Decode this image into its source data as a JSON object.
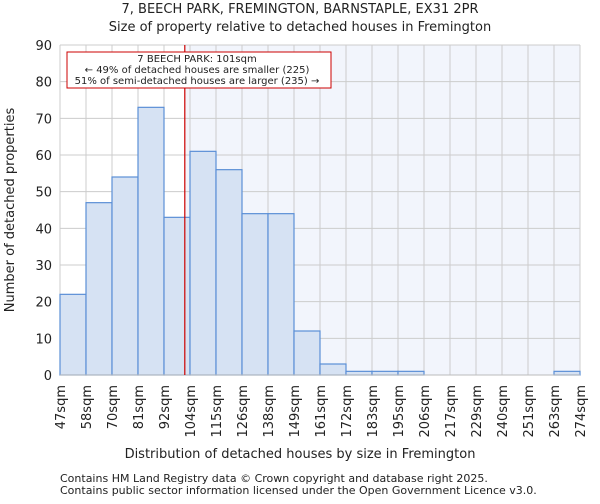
{
  "chart_data": {
    "type": "bar",
    "title": "7, BEECH PARK, FREMINGTON, BARNSTAPLE, EX31 2PR",
    "subtitle": "Size of property relative to detached houses in Fremington",
    "xlabel": "Distribution of detached houses by size in Fremington",
    "ylabel": "Number of detached properties",
    "tick_labels": [
      "47sqm",
      "58sqm",
      "70sqm",
      "81sqm",
      "92sqm",
      "104sqm",
      "115sqm",
      "126sqm",
      "138sqm",
      "149sqm",
      "161sqm",
      "172sqm",
      "183sqm",
      "195sqm",
      "206sqm",
      "217sqm",
      "229sqm",
      "240sqm",
      "251sqm",
      "263sqm",
      "274sqm"
    ],
    "values": [
      22,
      47,
      54,
      73,
      43,
      61,
      56,
      44,
      44,
      12,
      3,
      1,
      1,
      1,
      0,
      0,
      0,
      0,
      0,
      1
    ],
    "ylim": [
      0,
      90
    ],
    "yticks": [
      0,
      10,
      20,
      30,
      40,
      50,
      60,
      70,
      80,
      90
    ],
    "grid": true,
    "marker": {
      "value_bin_position": 4.8,
      "label": "7 BEECH PARK: 101sqm",
      "line1": "← 49% of detached houses are smaller (225)",
      "line2": "51% of semi-detached houses are larger (235) →",
      "color": "#cc0000"
    },
    "colors": {
      "bar_fill": "#d6e2f3",
      "bar_stroke": "#5b8fd6",
      "right_bg": "#f2f5fc"
    }
  },
  "footer": {
    "line1": "Contains HM Land Registry data © Crown copyright and database right 2025.",
    "line2": "Contains public sector information licensed under the Open Government Licence v3.0."
  }
}
